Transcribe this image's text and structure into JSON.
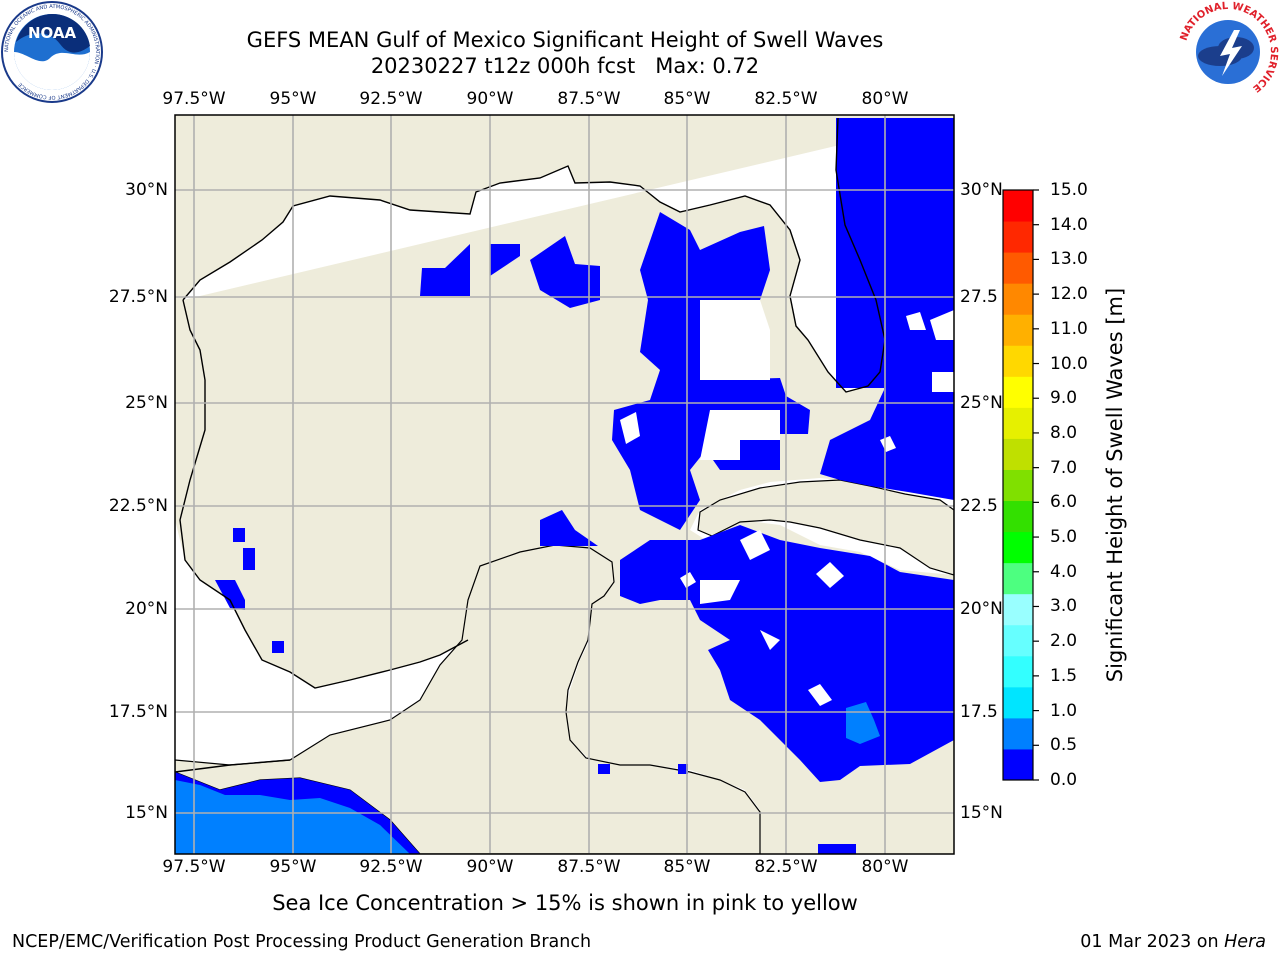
{
  "title": {
    "line1": "GEFS MEAN Gulf of Mexico Significant Height of Swell Waves",
    "line2": "20230227 t12z 000h fcst   Max: 0.72"
  },
  "map": {
    "lon_ticks": [
      "97.5°W",
      "95°W",
      "92.5°W",
      "90°W",
      "87.5°W",
      "85°W",
      "82.5°W",
      "80°W"
    ],
    "lat_ticks_left": [
      "30°N",
      "27.5°N",
      "25°N",
      "22.5°N",
      "20°N",
      "17.5°N",
      "15°N"
    ],
    "lat_ticks_right": [
      "30°N",
      "27.5",
      "25°N",
      "22.5",
      "20°N",
      "17.5",
      "15°N"
    ],
    "land_color": "#eeecdb",
    "ocean_color": "#ffffff",
    "grid_color": "#b0b0b0"
  },
  "colorbar": {
    "label": "Significant Height of Swell Waves [m]",
    "ticks": [
      "15.0",
      "14.0",
      "13.0",
      "12.0",
      "11.0",
      "10.0",
      "9.0",
      "8.0",
      "7.0",
      "6.0",
      "5.0",
      "4.0",
      "3.0",
      "2.0",
      "1.5",
      "1.0",
      "0.5",
      "0.0"
    ],
    "colors_bottom_to_top": [
      "#0000ff",
      "#0080ff",
      "#00e5ff",
      "#33ffff",
      "#66ffff",
      "#99ffff",
      "#4dff80",
      "#00ff00",
      "#33e000",
      "#80e000",
      "#bfe000",
      "#e6f000",
      "#ffff00",
      "#ffd800",
      "#ffb000",
      "#ff8800",
      "#ff5a00",
      "#ff2800",
      "#ff0000"
    ]
  },
  "note": "Sea Ice Concentration > 15% is shown in pink to yellow",
  "footer": {
    "left": "NCEP/EMC/Verification Post Processing Product Generation Branch",
    "date": "01 Mar 2023 on ",
    "host": "Hera"
  },
  "logos": {
    "noaa": "NOAA",
    "noaa_ring": "NATIONAL OCEANIC AND ATMOSPHERIC ADMINISTRATION · U.S. DEPARTMENT OF COMMERCE",
    "nws_ring": "NATIONAL WEATHER SERVICE"
  }
}
